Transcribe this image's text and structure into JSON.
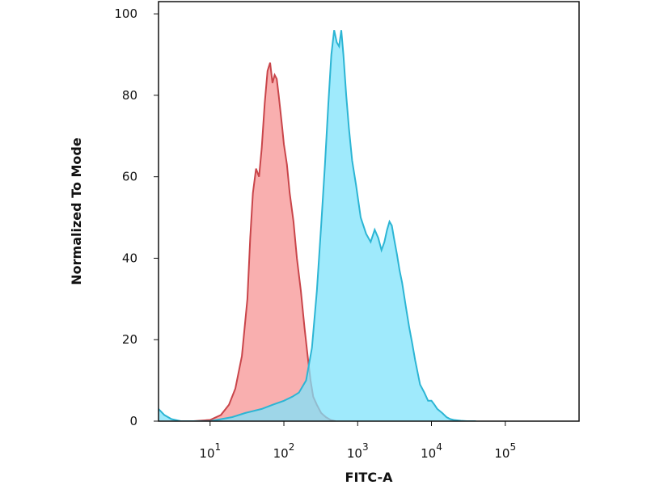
{
  "chart_data": {
    "type": "area",
    "title": "",
    "xlabel": "FITC-A",
    "ylabel": "Normalized To Mode",
    "x_scale": "log",
    "xlim": [
      2,
      1000000
    ],
    "ylim": [
      0,
      103
    ],
    "grid": false,
    "legend": "none",
    "x_ticks": [
      {
        "value": 10,
        "base": "10",
        "exp": "1"
      },
      {
        "value": 100,
        "base": "10",
        "exp": "2"
      },
      {
        "value": 1000,
        "base": "10",
        "exp": "3"
      },
      {
        "value": 10000,
        "base": "10",
        "exp": "4"
      },
      {
        "value": 100000,
        "base": "10",
        "exp": "5"
      }
    ],
    "y_ticks": [
      {
        "value": 0,
        "label": "0"
      },
      {
        "value": 20,
        "label": "20"
      },
      {
        "value": 40,
        "label": "40"
      },
      {
        "value": 60,
        "label": "60"
      },
      {
        "value": 80,
        "label": "80"
      },
      {
        "value": 100,
        "label": "100"
      }
    ],
    "series": [
      {
        "color_fill": "#f79494",
        "color_line": "#c9454a",
        "x": [
          6,
          10,
          14,
          18,
          22,
          27,
          32,
          35,
          38,
          42,
          46,
          50,
          55,
          60,
          65,
          70,
          75,
          80,
          85,
          90,
          95,
          100,
          110,
          120,
          135,
          150,
          170,
          190,
          210,
          230,
          250,
          280,
          320,
          370,
          430,
          500
        ],
        "y": [
          0,
          0.3,
          1.5,
          4,
          8,
          16,
          30,
          45,
          56,
          62,
          60,
          67,
          78,
          86,
          88,
          83,
          85,
          84,
          80,
          76,
          72,
          68,
          63,
          56,
          49,
          40,
          32,
          23,
          16,
          10,
          6,
          4,
          2,
          1,
          0.3,
          0
        ]
      },
      {
        "color_fill": "#7fe3fb",
        "color_line": "#2cb5d4",
        "x": [
          2,
          2.4,
          3,
          4,
          6,
          10,
          20,
          30,
          50,
          70,
          100,
          130,
          160,
          200,
          240,
          280,
          320,
          360,
          400,
          440,
          480,
          520,
          560,
          600,
          640,
          700,
          760,
          840,
          950,
          1100,
          1300,
          1500,
          1700,
          1900,
          2100,
          2300,
          2500,
          2700,
          2900,
          3100,
          3400,
          3700,
          4000,
          4500,
          5000,
          5500,
          6000,
          7000,
          8000,
          9000,
          10000,
          11000,
          12000,
          14000,
          16000,
          18000,
          20000,
          25000,
          30000,
          40000
        ],
        "y": [
          3,
          1.5,
          0.5,
          0,
          0,
          0,
          1,
          2,
          3,
          4,
          5,
          6,
          7,
          10,
          18,
          32,
          48,
          63,
          78,
          90,
          96,
          93,
          92,
          96,
          90,
          80,
          72,
          64,
          58,
          50,
          46,
          44,
          47,
          45,
          42,
          44,
          47,
          49,
          48,
          45,
          41,
          37,
          34,
          28,
          23,
          19,
          15,
          9,
          7,
          5,
          5,
          4,
          3,
          2,
          1,
          0.5,
          0.3,
          0.1,
          0,
          0
        ]
      }
    ]
  }
}
